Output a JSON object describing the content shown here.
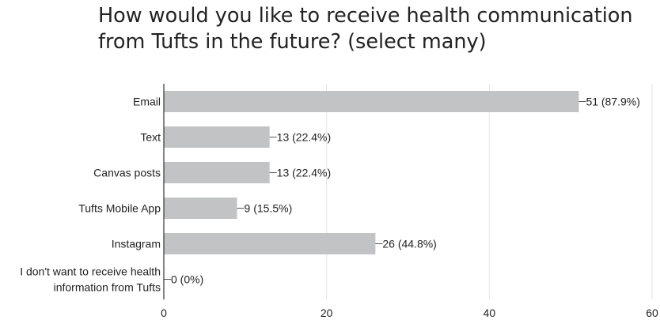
{
  "title_lines": [
    "How would you like to receive health communication",
    "from Tufts in the future? (select many)"
  ],
  "colors": {
    "bar": "#c2c3c5",
    "grid": "#e6e6e6",
    "axis": "#333333",
    "text": "#222222"
  },
  "chart_data": {
    "type": "bar",
    "orientation": "horizontal",
    "title": "How would you like to receive health communication from Tufts in the future? (select many)",
    "categories": [
      [
        "Email"
      ],
      [
        "Text"
      ],
      [
        "Canvas posts"
      ],
      [
        "Tufts Mobile App"
      ],
      [
        "Instagram"
      ],
      [
        "I don't want to receive health",
        "information from Tufts"
      ]
    ],
    "values": [
      51,
      13,
      13,
      9,
      26,
      0
    ],
    "value_labels": [
      "51 (87.9%)",
      "13 (22.4%)",
      "13 (22.4%)",
      "9 (15.5%)",
      "26 (44.8%)",
      "0 (0%)"
    ],
    "xlim": [
      0,
      60
    ],
    "xticks": [
      0,
      20,
      40,
      60
    ],
    "xlabel": "",
    "ylabel": "",
    "grid": true,
    "legend": "none"
  }
}
